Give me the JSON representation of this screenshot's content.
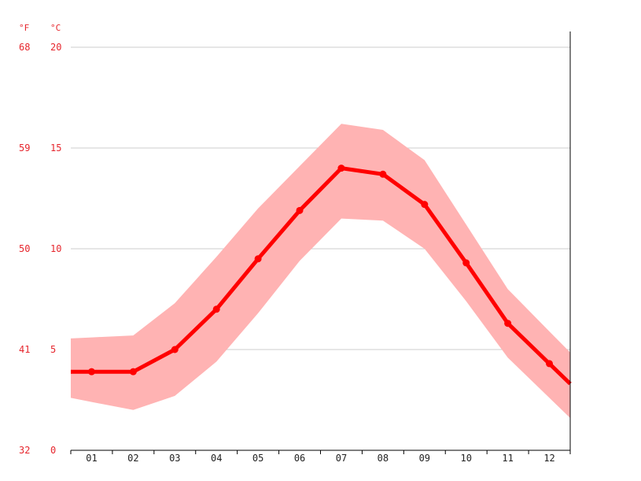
{
  "chart_data": {
    "type": "line",
    "title": "",
    "xlabel": "",
    "ylabel": "",
    "categories": [
      "01",
      "02",
      "03",
      "04",
      "05",
      "06",
      "07",
      "08",
      "09",
      "10",
      "11",
      "12"
    ],
    "y_unit_left": "°F",
    "y_unit_right": "°C",
    "ylim": [
      0,
      20
    ],
    "yticks_c": [
      "20",
      "15",
      "10",
      "5",
      "0"
    ],
    "yticks_f": [
      "68",
      "59",
      "50",
      "41",
      "32"
    ],
    "grid": true,
    "series": [
      {
        "values": [
          3.9,
          3.9,
          5.0,
          7.0,
          9.5,
          11.9,
          14.0,
          13.7,
          12.2,
          9.3,
          6.3,
          4.3
        ]
      }
    ],
    "range_band": {
      "max": [
        5.6,
        5.7,
        7.3,
        9.6,
        12.0,
        14.1,
        16.2,
        15.9,
        14.4,
        11.2,
        8.0,
        5.9
      ],
      "min": [
        2.4,
        2.0,
        2.7,
        4.4,
        6.8,
        9.4,
        11.5,
        11.4,
        10.0,
        7.4,
        4.6,
        2.6
      ]
    },
    "colors": {
      "line": "#ff0000",
      "band": "#ffb3b3",
      "grid": "#cccccc",
      "axis_text": "#e6262d",
      "axis": "#000000"
    }
  }
}
